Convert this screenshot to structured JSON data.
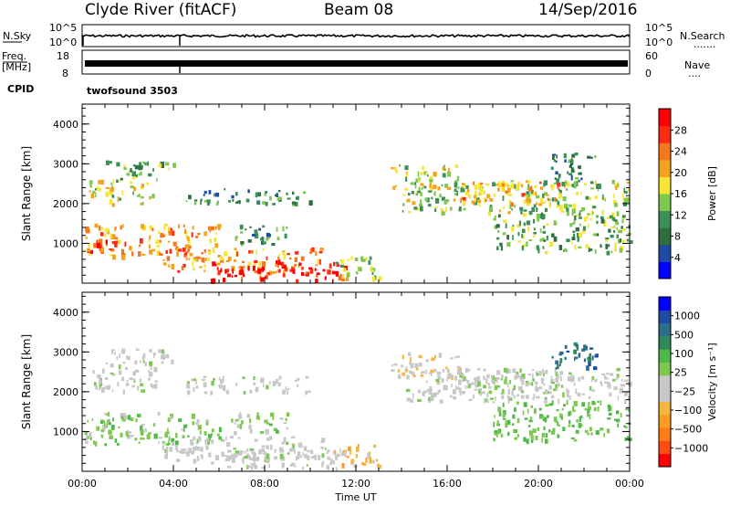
{
  "header": {
    "station": "Clyde River (fitACF)",
    "beam": "Beam 08",
    "date": "14/Sep/2016"
  },
  "meta_panels": {
    "nsky_label": "N.Sky",
    "nsky_top": "10^5",
    "nsky_bottom": "10^0",
    "nsearch_label": "N.Search",
    "nsearch_dots": ".......",
    "freq_label_1": "Freq.",
    "freq_label_2": "[MHz]",
    "freq_top": "18",
    "freq_bottom": "8",
    "nave_top": "60",
    "nave_bottom": "0",
    "nave_label": "Nave",
    "nave_dots": "....",
    "cpid_label": "CPID",
    "cpid_value": "twofsound 3503"
  },
  "x_axis": {
    "ticks": [
      "00:00",
      "04:00",
      "08:00",
      "12:00",
      "16:00",
      "20:00",
      "00:00"
    ],
    "title": "Time UT"
  },
  "y_axis": {
    "title": "Slant Range [km]",
    "ticks": [
      "1000",
      "2000",
      "3000",
      "4000"
    ]
  },
  "power_colorbar": {
    "title": "Power [dB]",
    "labels": [
      "28",
      "24",
      "20",
      "16",
      "12",
      "8",
      "4"
    ],
    "colors": [
      "#0000ff",
      "#1f4ba8",
      "#2e6f3f",
      "#3c8f55",
      "#7ec850",
      "#f6e534",
      "#f7a21d",
      "#f4771a",
      "#ff2a10",
      "#ff0000"
    ]
  },
  "velocity_colorbar": {
    "title": "Velocity [m s⁻¹]",
    "labels": [
      "1000",
      "500",
      "100",
      "25",
      "−25",
      "−100",
      "−500",
      "−1000"
    ],
    "colors": [
      "#ff0000",
      "#ff4a10",
      "#ff7d18",
      "#ff9b20",
      "#f5b640",
      "#c8c8c8",
      "#c8c8c8",
      "#7ec850",
      "#4fb84a",
      "#2e8a5a",
      "#2c6f8a",
      "#1f4ba8",
      "#0000ff"
    ]
  },
  "chart_data": [
    {
      "type": "heatmap",
      "title": "Power [dB]",
      "xlabel": "Time UT",
      "ylabel": "Slant Range [km]",
      "xlim": [
        0,
        24
      ],
      "ylim": [
        0,
        4500
      ],
      "value_range": [
        0,
        30
      ],
      "features": [
        {
          "t0": 0.3,
          "t1": 3.2,
          "r0": 2000,
          "r1": 2600,
          "v": 16
        },
        {
          "t0": 0.1,
          "t1": 6.0,
          "r0": 700,
          "r1": 1500,
          "v": 20
        },
        {
          "t0": 0.3,
          "t1": 2.0,
          "r0": 800,
          "r1": 1100,
          "v": 28
        },
        {
          "t0": 1.0,
          "t1": 4.0,
          "r0": 2600,
          "r1": 3100,
          "v": 12
        },
        {
          "t0": 3.5,
          "t1": 10.5,
          "r0": 300,
          "r1": 900,
          "v": 22
        },
        {
          "t0": 5.5,
          "t1": 11.5,
          "r0": 100,
          "r1": 600,
          "v": 28
        },
        {
          "t0": 6.5,
          "t1": 9.0,
          "r0": 1000,
          "r1": 1500,
          "v": 10
        },
        {
          "t0": 4.5,
          "t1": 10.0,
          "r0": 2000,
          "r1": 2400,
          "v": 10
        },
        {
          "t0": 11.0,
          "t1": 13.0,
          "r0": 150,
          "r1": 700,
          "v": 14
        },
        {
          "t0": 13.5,
          "t1": 16.5,
          "r0": 2400,
          "r1": 3000,
          "v": 16
        },
        {
          "t0": 14.0,
          "t1": 24.0,
          "r0": 1800,
          "r1": 2600,
          "v": 14
        },
        {
          "t0": 16.5,
          "t1": 21.0,
          "r0": 2000,
          "r1": 2600,
          "v": 20
        },
        {
          "t0": 18.0,
          "t1": 24.0,
          "r0": 800,
          "r1": 1800,
          "v": 12
        },
        {
          "t0": 20.5,
          "t1": 22.5,
          "r0": 2600,
          "r1": 3300,
          "v": 8
        }
      ]
    },
    {
      "type": "heatmap",
      "title": "Velocity [m s⁻¹]",
      "xlabel": "Time UT",
      "ylabel": "Slant Range [km]",
      "xlim": [
        0,
        24
      ],
      "ylim": [
        0,
        4500
      ],
      "value_range": [
        -1000,
        1000
      ],
      "features": [
        {
          "t0": 0.3,
          "t1": 3.2,
          "r0": 2000,
          "r1": 2600,
          "v": 10
        },
        {
          "t0": 0.1,
          "t1": 6.0,
          "r0": 700,
          "r1": 1500,
          "v": 150
        },
        {
          "t0": 1.0,
          "t1": 4.0,
          "r0": 2600,
          "r1": 3100,
          "v": 0
        },
        {
          "t0": 3.5,
          "t1": 10.5,
          "r0": 300,
          "r1": 900,
          "v": -20
        },
        {
          "t0": 5.5,
          "t1": 11.5,
          "r0": 100,
          "r1": 600,
          "v": -10
        },
        {
          "t0": 6.5,
          "t1": 9.0,
          "r0": 1000,
          "r1": 1500,
          "v": 120
        },
        {
          "t0": 4.5,
          "t1": 10.0,
          "r0": 2000,
          "r1": 2400,
          "v": 0
        },
        {
          "t0": 11.0,
          "t1": 13.0,
          "r0": 150,
          "r1": 700,
          "v": -300
        },
        {
          "t0": 13.5,
          "t1": 16.5,
          "r0": 2400,
          "r1": 3000,
          "v": -200
        },
        {
          "t0": 14.0,
          "t1": 24.0,
          "r0": 1800,
          "r1": 2600,
          "v": 0
        },
        {
          "t0": 16.5,
          "t1": 21.0,
          "r0": 2000,
          "r1": 2600,
          "v": 80
        },
        {
          "t0": 18.0,
          "t1": 24.0,
          "r0": 800,
          "r1": 1800,
          "v": 250
        },
        {
          "t0": 20.5,
          "t1": 22.5,
          "r0": 2600,
          "r1": 3300,
          "v": 600
        }
      ]
    }
  ]
}
